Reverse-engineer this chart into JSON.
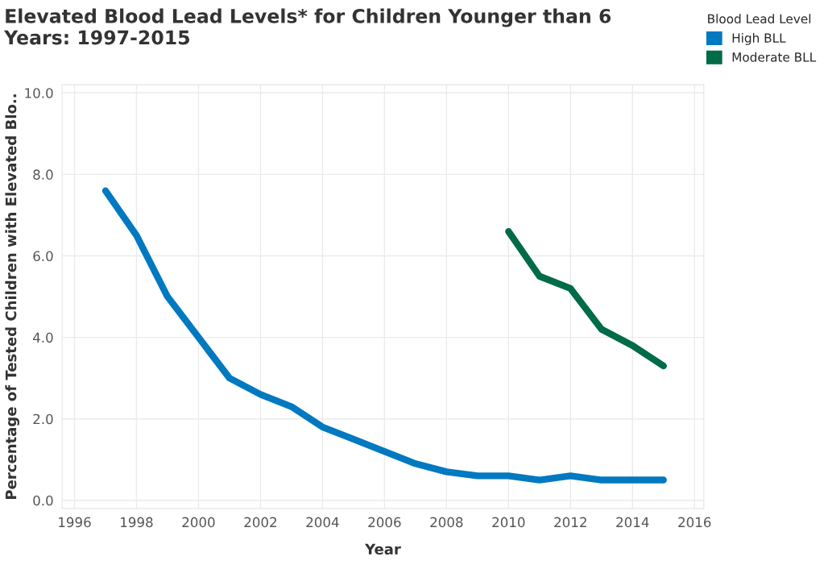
{
  "chart_data": {
    "type": "line",
    "title": "Elevated Blood Lead Levels* for Children Younger than 6\nYears: 1997-2015",
    "xlabel": "Year",
    "ylabel": "Percentage of Tested Children with Elevated Blo..",
    "legend_title": "Blood Lead Level",
    "legend": "top right",
    "series": [
      {
        "name": "High BLL",
        "color": "#0079c1",
        "x": [
          1997,
          1998,
          1999,
          2000,
          2001,
          2002,
          2003,
          2004,
          2005,
          2006,
          2007,
          2008,
          2009,
          2010,
          2011,
          2012,
          2013,
          2014,
          2015
        ],
        "values": [
          7.6,
          6.5,
          5.0,
          4.0,
          3.0,
          2.6,
          2.3,
          1.8,
          1.5,
          1.2,
          0.9,
          0.7,
          0.6,
          0.6,
          0.5,
          0.6,
          0.5,
          0.5,
          0.5
        ]
      },
      {
        "name": "Moderate BLL",
        "color": "#006b47",
        "x": [
          2010,
          2011,
          2012,
          2013,
          2014,
          2015
        ],
        "values": [
          6.6,
          5.5,
          5.2,
          4.2,
          3.8,
          3.3
        ]
      }
    ],
    "xlim": [
      1995.6,
      2016.3
    ],
    "xticks": [
      1996,
      1998,
      2000,
      2002,
      2004,
      2006,
      2008,
      2010,
      2012,
      2014,
      2016
    ],
    "ylim": [
      -0.2,
      10.2
    ],
    "yticks": [
      {
        "value": 0,
        "label": "0.0"
      },
      {
        "value": 2,
        "label": "2.0"
      },
      {
        "value": 4,
        "label": "4.0"
      },
      {
        "value": 6,
        "label": "6.0"
      },
      {
        "value": 8,
        "label": "8.0"
      },
      {
        "value": 10,
        "label": "10.0"
      }
    ],
    "grid": true,
    "line_style": "solid",
    "marker": "none"
  }
}
